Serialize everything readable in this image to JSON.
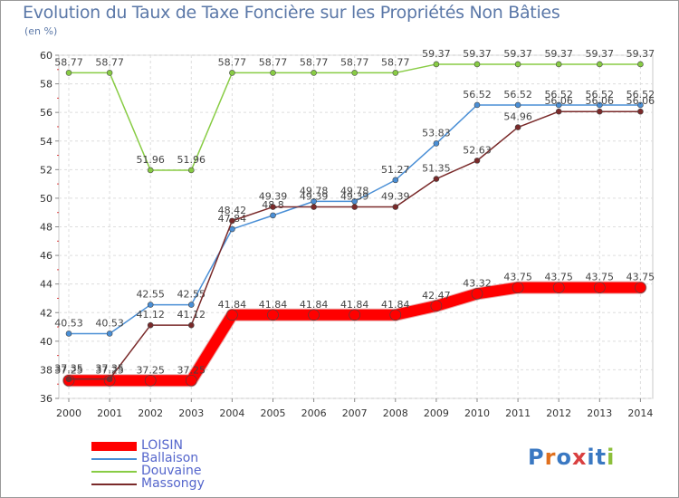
{
  "title": "Evolution du Taux de Taxe Foncière sur les Propriétés Non Bâties",
  "subtitle": "(en %)",
  "brand": {
    "letters": [
      "P",
      "r",
      "o",
      "x",
      "i",
      "t",
      "i"
    ],
    "colors": [
      "#3a78c2",
      "#e0701e",
      "#3a78c2",
      "#d94040",
      "#3a78c2",
      "#3a78c2",
      "#8cbf3a"
    ]
  },
  "chart_data": {
    "type": "line",
    "title": "Evolution du Taux de Taxe Foncière sur les Propriétés Non Bâties",
    "ylabel": "(en %)",
    "xlabel": "",
    "categories": [
      "2000",
      "2001",
      "2002",
      "2003",
      "2004",
      "2005",
      "2006",
      "2007",
      "2008",
      "2009",
      "2010",
      "2011",
      "2012",
      "2013",
      "2014"
    ],
    "ylim": [
      36,
      60
    ],
    "yticks": [
      36,
      38,
      40,
      42,
      44,
      46,
      48,
      50,
      52,
      54,
      56,
      58,
      60
    ],
    "grid": true,
    "legend_position": "bottom-left",
    "series": [
      {
        "name": "LOISIN",
        "color": "#ff0000",
        "width": 12,
        "values": [
          37.25,
          37.25,
          37.25,
          37.25,
          41.84,
          41.84,
          41.84,
          41.84,
          41.84,
          42.47,
          43.32,
          43.75,
          43.75,
          43.75,
          43.75
        ],
        "labels": [
          "37.25",
          "37.25",
          "37.25",
          "37.25",
          "41.84",
          "41.84",
          "41.84",
          "41.84",
          "41.84",
          "42.47",
          "43.32",
          "43.75",
          "43.75",
          "43.75",
          "43.75"
        ]
      },
      {
        "name": "Ballaison",
        "color": "#4a8fd6",
        "width": 1.5,
        "values": [
          40.53,
          40.53,
          42.55,
          42.55,
          47.84,
          48.8,
          49.78,
          49.78,
          51.27,
          53.83,
          56.52,
          56.52,
          56.52,
          56.52,
          56.52
        ],
        "labels": [
          "40.53",
          "40.53",
          "42.55",
          "42.55",
          "47.84",
          "48.8",
          "49.78",
          "49.78",
          "51.27",
          "53.83",
          "56.52",
          "56.52",
          "56.52",
          "56.52",
          "56.52"
        ]
      },
      {
        "name": "Douvaine",
        "color": "#88cc44",
        "width": 1.5,
        "values": [
          58.77,
          58.77,
          51.96,
          51.96,
          58.77,
          58.77,
          58.77,
          58.77,
          58.77,
          59.37,
          59.37,
          59.37,
          59.37,
          59.37,
          59.37
        ],
        "labels": [
          "58.77",
          "58.77",
          "51.96",
          "51.96",
          "58.77",
          "58.77",
          "58.77",
          "58.77",
          "58.77",
          "59.37",
          "59.37",
          "59.37",
          "59.37",
          "59.37",
          "59.37"
        ]
      },
      {
        "name": "Massongy",
        "color": "#7a2a2a",
        "width": 1.5,
        "values": [
          37.35,
          37.35,
          41.12,
          41.12,
          48.42,
          49.39,
          49.39,
          49.39,
          49.39,
          51.35,
          52.63,
          54.96,
          56.06,
          56.06,
          56.06
        ],
        "labels": [
          "37.35",
          "37.35",
          "41.12",
          "41.12",
          "48.42",
          "49.39",
          "49.39",
          "49.39",
          "49.39",
          "51.35",
          "52.63",
          "54.96",
          "56.06",
          "56.06",
          "56.06"
        ]
      }
    ]
  }
}
